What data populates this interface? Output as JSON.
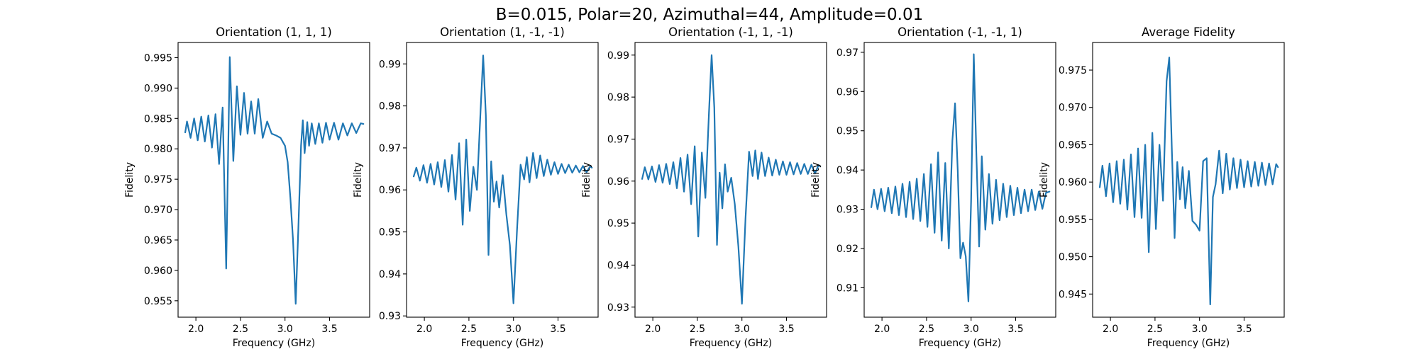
{
  "figure": {
    "suptitle": "B=0.015, Polar=20, Azimuthal=44, Amplitude=0.01",
    "line_color": "#1f77b4"
  },
  "chart_data": [
    {
      "type": "line",
      "title": "Orientation (1, 1, 1)",
      "xlabel": "Frequency (GHz)",
      "ylabel": "Fidelity",
      "xlim": [
        1.8,
        3.95
      ],
      "ylim": [
        0.9523,
        0.9975
      ],
      "xticks": [
        2.0,
        2.5,
        3.0,
        3.5
      ],
      "xtick_labels": [
        "2.0",
        "2.5",
        "3.0",
        "3.5"
      ],
      "yticks": [
        0.955,
        0.96,
        0.965,
        0.97,
        0.975,
        0.98,
        0.985,
        0.99,
        0.995
      ],
      "ytick_labels": [
        "0.955",
        "0.960",
        "0.965",
        "0.970",
        "0.975",
        "0.980",
        "0.985",
        "0.990",
        "0.995"
      ],
      "grid": false,
      "series": [
        {
          "x": [
            1.88,
            1.9,
            1.94,
            1.98,
            2.02,
            2.06,
            2.1,
            2.14,
            2.18,
            2.22,
            2.26,
            2.3,
            2.34,
            2.38,
            2.42,
            2.46,
            2.5,
            2.54,
            2.58,
            2.62,
            2.66,
            2.7,
            2.75,
            2.8,
            2.85,
            2.9,
            2.95,
            3.0,
            3.03,
            3.06,
            3.09,
            3.12,
            3.15,
            3.18,
            3.2,
            3.22,
            3.25,
            3.27,
            3.3,
            3.34,
            3.38,
            3.42,
            3.46,
            3.5,
            3.55,
            3.6,
            3.65,
            3.7,
            3.75,
            3.8,
            3.85,
            3.88
          ],
          "y": [
            0.9827,
            0.9845,
            0.9818,
            0.985,
            0.9814,
            0.9853,
            0.9812,
            0.9855,
            0.9802,
            0.9857,
            0.9775,
            0.9868,
            0.9603,
            0.9951,
            0.978,
            0.9903,
            0.9823,
            0.9892,
            0.9825,
            0.9878,
            0.9825,
            0.9882,
            0.9818,
            0.9845,
            0.9825,
            0.9822,
            0.9818,
            0.9805,
            0.9778,
            0.972,
            0.965,
            0.9545,
            0.967,
            0.9805,
            0.9847,
            0.9793,
            0.9844,
            0.9805,
            0.9842,
            0.9808,
            0.9842,
            0.981,
            0.9843,
            0.9815,
            0.9843,
            0.9815,
            0.9842,
            0.9822,
            0.9842,
            0.9826,
            0.9842,
            0.9841
          ]
        }
      ]
    },
    {
      "type": "line",
      "title": "Orientation (1, -1, -1)",
      "xlabel": "Frequency (GHz)",
      "ylabel": "Fidelity",
      "xlim": [
        1.8,
        3.95
      ],
      "ylim": [
        0.9297,
        0.9951
      ],
      "xticks": [
        2.0,
        2.5,
        3.0,
        3.5
      ],
      "xtick_labels": [
        "2.0",
        "2.5",
        "3.0",
        "3.5"
      ],
      "yticks": [
        0.93,
        0.94,
        0.95,
        0.96,
        0.97,
        0.98,
        0.99
      ],
      "ytick_labels": [
        "0.93",
        "0.94",
        "0.95",
        "0.96",
        "0.97",
        "0.98",
        "0.99"
      ],
      "grid": false,
      "series": [
        {
          "x": [
            1.88,
            1.91,
            1.95,
            1.99,
            2.03,
            2.07,
            2.11,
            2.15,
            2.19,
            2.23,
            2.27,
            2.31,
            2.35,
            2.39,
            2.43,
            2.47,
            2.51,
            2.55,
            2.59,
            2.63,
            2.66,
            2.69,
            2.72,
            2.75,
            2.78,
            2.81,
            2.84,
            2.88,
            2.92,
            2.96,
            3.0,
            3.04,
            3.08,
            3.12,
            3.15,
            3.18,
            3.22,
            3.26,
            3.3,
            3.34,
            3.38,
            3.42,
            3.46,
            3.5,
            3.54,
            3.58,
            3.62,
            3.66,
            3.7,
            3.74,
            3.78,
            3.82,
            3.86,
            3.88
          ],
          "y": [
            0.9632,
            0.9653,
            0.9622,
            0.9659,
            0.9617,
            0.9662,
            0.9613,
            0.9666,
            0.9607,
            0.9671,
            0.9596,
            0.9683,
            0.9577,
            0.9711,
            0.9517,
            0.972,
            0.955,
            0.9655,
            0.96,
            0.9785,
            0.992,
            0.9778,
            0.9445,
            0.9668,
            0.9572,
            0.962,
            0.9558,
            0.9635,
            0.9542,
            0.9468,
            0.933,
            0.9505,
            0.966,
            0.9625,
            0.9678,
            0.9618,
            0.9688,
            0.9628,
            0.9682,
            0.9633,
            0.9672,
            0.9636,
            0.9666,
            0.9638,
            0.9662,
            0.964,
            0.966,
            0.9641,
            0.9658,
            0.9642,
            0.9657,
            0.9642,
            0.9656,
            0.9653
          ]
        }
      ]
    },
    {
      "type": "line",
      "title": "Orientation (-1, 1, -1)",
      "xlabel": "Frequency (GHz)",
      "ylabel": "Fidelity",
      "xlim": [
        1.8,
        3.95
      ],
      "ylim": [
        0.9276,
        0.993
      ],
      "xticks": [
        2.0,
        2.5,
        3.0,
        3.5
      ],
      "xtick_labels": [
        "2.0",
        "2.5",
        "3.0",
        "3.5"
      ],
      "yticks": [
        0.93,
        0.94,
        0.95,
        0.96,
        0.97,
        0.98,
        0.99
      ],
      "ytick_labels": [
        "0.93",
        "0.94",
        "0.95",
        "0.96",
        "0.97",
        "0.98",
        "0.99"
      ],
      "grid": false,
      "series": [
        {
          "x": [
            1.88,
            1.91,
            1.95,
            1.99,
            2.03,
            2.07,
            2.11,
            2.15,
            2.19,
            2.23,
            2.27,
            2.31,
            2.35,
            2.39,
            2.43,
            2.47,
            2.51,
            2.55,
            2.59,
            2.63,
            2.66,
            2.69,
            2.72,
            2.75,
            2.78,
            2.81,
            2.84,
            2.88,
            2.92,
            2.96,
            3.0,
            3.04,
            3.08,
            3.12,
            3.15,
            3.18,
            3.22,
            3.26,
            3.3,
            3.34,
            3.38,
            3.42,
            3.46,
            3.5,
            3.54,
            3.58,
            3.62,
            3.66,
            3.7,
            3.74,
            3.78,
            3.82,
            3.86,
            3.88
          ],
          "y": [
            0.9605,
            0.9633,
            0.9604,
            0.9635,
            0.9598,
            0.9638,
            0.9596,
            0.9641,
            0.9593,
            0.9645,
            0.9583,
            0.9655,
            0.9575,
            0.9663,
            0.9545,
            0.9683,
            0.9468,
            0.9668,
            0.956,
            0.9762,
            0.99,
            0.9775,
            0.9448,
            0.962,
            0.9535,
            0.964,
            0.9575,
            0.9608,
            0.9545,
            0.9445,
            0.9308,
            0.951,
            0.967,
            0.9612,
            0.9673,
            0.9605,
            0.9668,
            0.9612,
            0.9656,
            0.9613,
            0.9651,
            0.9615,
            0.9647,
            0.9615,
            0.9645,
            0.9616,
            0.9643,
            0.9617,
            0.9641,
            0.9617,
            0.9639,
            0.9618,
            0.9638,
            0.9635
          ]
        }
      ]
    },
    {
      "type": "line",
      "title": "Orientation (-1, -1, 1)",
      "xlabel": "Frequency (GHz)",
      "ylabel": "Fidelity",
      "xlim": [
        1.8,
        3.95
      ],
      "ylim": [
        0.9025,
        0.9725
      ],
      "xticks": [
        2.0,
        2.5,
        3.0,
        3.5
      ],
      "xtick_labels": [
        "2.0",
        "2.5",
        "3.0",
        "3.5"
      ],
      "yticks": [
        0.91,
        0.92,
        0.93,
        0.94,
        0.95,
        0.96,
        0.97
      ],
      "ytick_labels": [
        "0.91",
        "0.92",
        "0.93",
        "0.94",
        "0.95",
        "0.96",
        "0.97"
      ],
      "grid": false,
      "series": [
        {
          "x": [
            1.88,
            1.91,
            1.95,
            1.99,
            2.03,
            2.07,
            2.11,
            2.15,
            2.19,
            2.23,
            2.27,
            2.31,
            2.35,
            2.39,
            2.43,
            2.47,
            2.51,
            2.55,
            2.59,
            2.63,
            2.67,
            2.71,
            2.75,
            2.79,
            2.82,
            2.85,
            2.88,
            2.91,
            2.94,
            2.97,
            3.0,
            3.03,
            3.06,
            3.09,
            3.12,
            3.16,
            3.2,
            3.24,
            3.28,
            3.32,
            3.36,
            3.4,
            3.44,
            3.48,
            3.52,
            3.56,
            3.6,
            3.64,
            3.68,
            3.72,
            3.76,
            3.8,
            3.84,
            3.88
          ],
          "y": [
            0.9305,
            0.935,
            0.93,
            0.9352,
            0.9295,
            0.9355,
            0.929,
            0.9358,
            0.9285,
            0.9365,
            0.928,
            0.937,
            0.9275,
            0.9378,
            0.927,
            0.939,
            0.9255,
            0.9415,
            0.924,
            0.9445,
            0.922,
            0.9418,
            0.92,
            0.9475,
            0.957,
            0.94,
            0.9175,
            0.9215,
            0.918,
            0.9065,
            0.932,
            0.9695,
            0.9435,
            0.9205,
            0.9435,
            0.9248,
            0.939,
            0.9263,
            0.9375,
            0.9272,
            0.9365,
            0.928,
            0.936,
            0.9285,
            0.9355,
            0.929,
            0.935,
            0.9295,
            0.935,
            0.9298,
            0.9345,
            0.9301,
            0.9342,
            0.9345
          ]
        }
      ]
    },
    {
      "type": "line",
      "title": "Average Fidelity",
      "xlabel": "Frequency (GHz)",
      "ylabel": "Fidelity",
      "xlim": [
        1.8,
        3.95
      ],
      "ylim": [
        0.9419,
        0.9787
      ],
      "xticks": [
        2.0,
        2.5,
        3.0,
        3.5
      ],
      "xtick_labels": [
        "2.0",
        "2.5",
        "3.0",
        "3.5"
      ],
      "yticks": [
        0.945,
        0.95,
        0.955,
        0.96,
        0.965,
        0.97,
        0.975
      ],
      "ytick_labels": [
        "0.945",
        "0.950",
        "0.955",
        "0.960",
        "0.965",
        "0.970",
        "0.975"
      ],
      "grid": false,
      "series": [
        {
          "x": [
            1.88,
            1.91,
            1.95,
            1.99,
            2.03,
            2.07,
            2.11,
            2.15,
            2.19,
            2.23,
            2.27,
            2.31,
            2.35,
            2.39,
            2.43,
            2.47,
            2.51,
            2.55,
            2.59,
            2.63,
            2.66,
            2.69,
            2.72,
            2.75,
            2.78,
            2.81,
            2.84,
            2.88,
            2.92,
            2.96,
            3.0,
            3.04,
            3.08,
            3.12,
            3.15,
            3.18,
            3.22,
            3.26,
            3.3,
            3.34,
            3.38,
            3.42,
            3.46,
            3.5,
            3.54,
            3.58,
            3.62,
            3.66,
            3.7,
            3.74,
            3.78,
            3.82,
            3.86,
            3.88
          ],
          "y": [
            0.9593,
            0.9622,
            0.9581,
            0.9625,
            0.9573,
            0.9628,
            0.9571,
            0.963,
            0.9563,
            0.9637,
            0.9553,
            0.9645,
            0.9552,
            0.965,
            0.9506,
            0.9666,
            0.9537,
            0.965,
            0.9575,
            0.9735,
            0.9767,
            0.964,
            0.9525,
            0.9627,
            0.9577,
            0.962,
            0.9565,
            0.9615,
            0.9548,
            0.9543,
            0.9535,
            0.9628,
            0.9632,
            0.9436,
            0.958,
            0.9597,
            0.9642,
            0.9585,
            0.9638,
            0.959,
            0.9632,
            0.9592,
            0.963,
            0.9593,
            0.9628,
            0.9594,
            0.9627,
            0.9595,
            0.9626,
            0.9596,
            0.9625,
            0.9597,
            0.9624,
            0.962
          ]
        }
      ]
    }
  ]
}
